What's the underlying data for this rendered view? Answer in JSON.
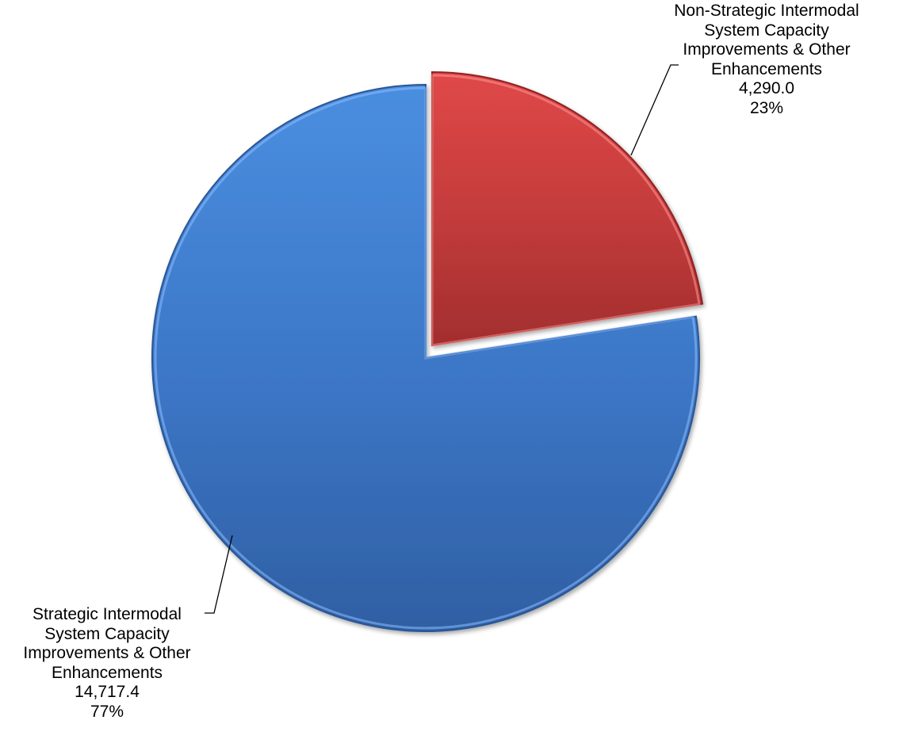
{
  "chart_data": {
    "type": "pie",
    "title": "",
    "slices": [
      {
        "label_lines": [
          "Strategic Intermodal",
          "System Capacity",
          "Improvements & Other",
          "Enhancements"
        ],
        "value": 14717.4,
        "value_text": "14,717.4",
        "percent": 77,
        "percent_text": "77%",
        "color": "#3d78c9"
      },
      {
        "label_lines": [
          "Non-Strategic Intermodal",
          "System Capacity",
          "Improvements & Other",
          "Enhancements"
        ],
        "value": 4290.0,
        "value_text": "4,290.0",
        "percent": 23,
        "percent_text": "23%",
        "color": "#c23b3b"
      }
    ],
    "start_slice": "Non-Strategic Intermodal",
    "direction": "clockwise",
    "exploded_slice": "Non-Strategic Intermodal",
    "legend": "none",
    "style": "3d-bevel"
  }
}
